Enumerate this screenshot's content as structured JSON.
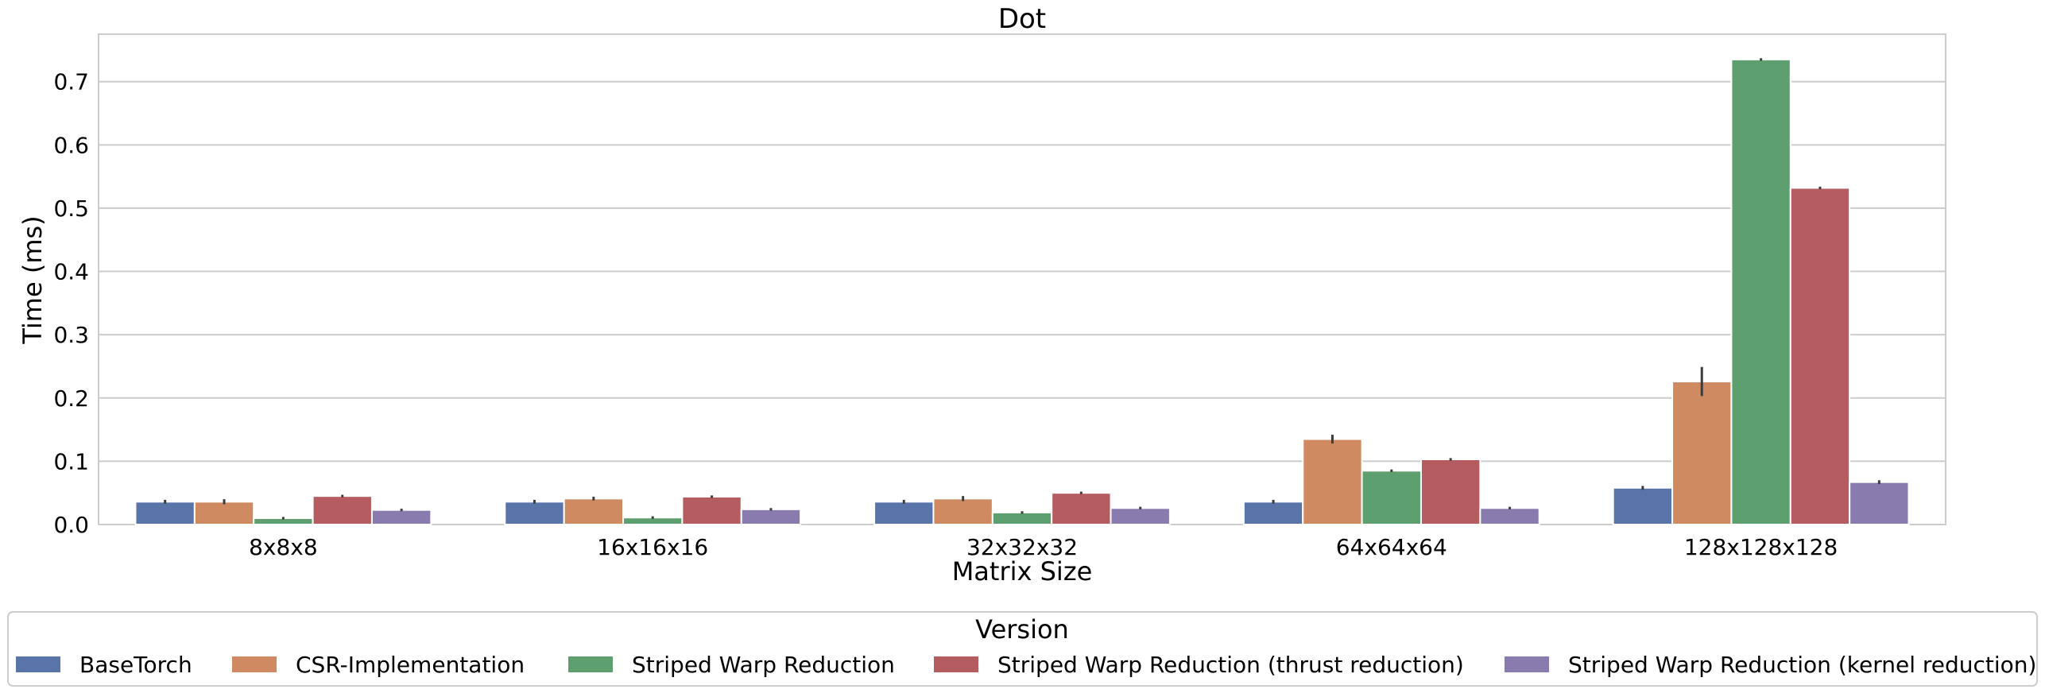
{
  "chart_data": {
    "type": "bar",
    "title": "Dot",
    "xlabel": "Matrix Size",
    "ylabel": "Time (ms)",
    "ylim": [
      0,
      0.775
    ],
    "yticks": [
      "0.0",
      "0.1",
      "0.2",
      "0.3",
      "0.4",
      "0.5",
      "0.6",
      "0.7"
    ],
    "grid": true,
    "legend_placement": "bottom",
    "legend_title": "Version",
    "categories": [
      "8x8x8",
      "16x16x16",
      "32x32x32",
      "64x64x64",
      "128x128x128"
    ],
    "series": [
      {
        "name": "BaseTorch",
        "color": "#5874a8",
        "values": [
          0.036,
          0.036,
          0.036,
          0.036,
          0.058
        ],
        "errors": [
          0.003,
          0.003,
          0.003,
          0.003,
          0.003
        ]
      },
      {
        "name": "CSR-Implementation",
        "color": "#cf8a62",
        "values": [
          0.036,
          0.041,
          0.041,
          0.135,
          0.226
        ],
        "errors": [
          0.004,
          0.003,
          0.004,
          0.007,
          0.023
        ]
      },
      {
        "name": "Striped Warp Reduction",
        "color": "#5e9f6f",
        "values": [
          0.01,
          0.011,
          0.019,
          0.085,
          0.735
        ],
        "errors": [
          0.002,
          0.002,
          0.002,
          0.002,
          0.002
        ]
      },
      {
        "name": "Striped Warp Reduction (thrust reduction)",
        "color": "#b55c60",
        "values": [
          0.045,
          0.044,
          0.05,
          0.103,
          0.532
        ],
        "errors": [
          0.002,
          0.002,
          0.002,
          0.002,
          0.002
        ]
      },
      {
        "name": "Striped Warp Reduction (kernel reduction)",
        "color": "#8a7bae",
        "values": [
          0.023,
          0.024,
          0.026,
          0.026,
          0.067
        ],
        "errors": [
          0.002,
          0.002,
          0.002,
          0.002,
          0.003
        ]
      }
    ]
  }
}
